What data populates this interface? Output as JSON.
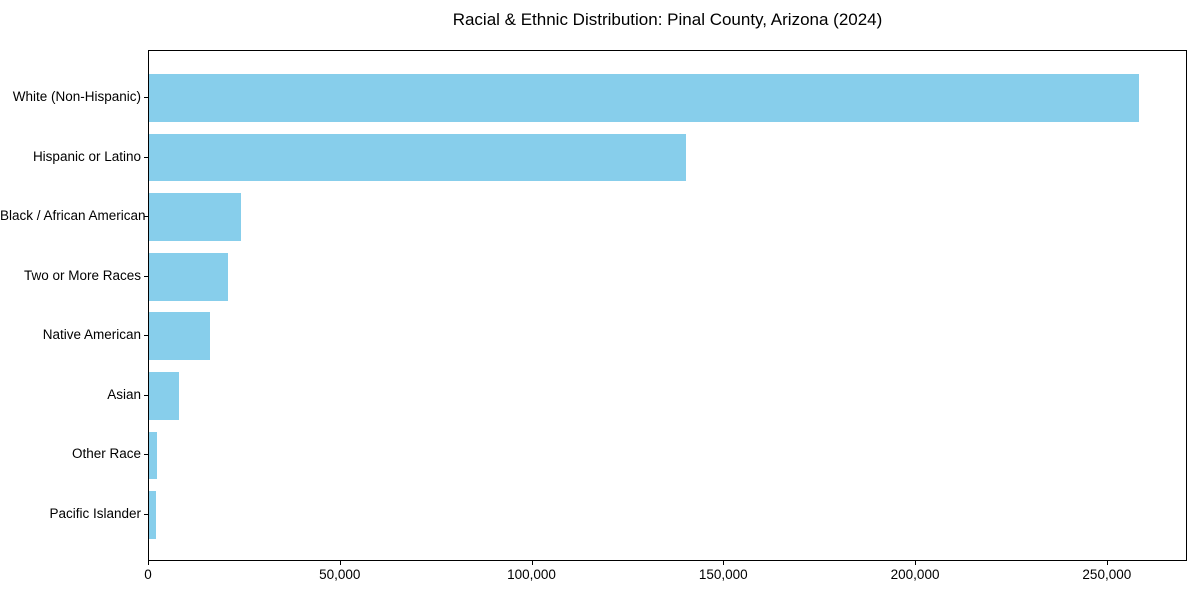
{
  "title": "Racial & Ethnic Distribution: Pinal County, Arizona (2024)",
  "chart_data": {
    "type": "bar",
    "orientation": "horizontal",
    "title": "Racial & Ethnic Distribution: Pinal County, Arizona (2024)",
    "categories": [
      "White (Non-Hispanic)",
      "Hispanic or Latino",
      "Black / African American",
      "Two or More Races",
      "Native American",
      "Asian",
      "Other Race",
      "Pacific Islander"
    ],
    "values": [
      258000,
      140000,
      24000,
      20600,
      16000,
      7800,
      2100,
      1800
    ],
    "xlabel": "",
    "ylabel": "",
    "xlim": [
      0,
      270900
    ],
    "xticks": [
      0,
      50000,
      100000,
      150000,
      200000,
      250000
    ],
    "xtick_labels": [
      "0",
      "50,000",
      "100,000",
      "150,000",
      "200,000",
      "250,000"
    ],
    "bar_color": "#87CEEB",
    "spine_color": "#000000",
    "background_color": "#ffffff",
    "grid": false,
    "legend": null
  }
}
